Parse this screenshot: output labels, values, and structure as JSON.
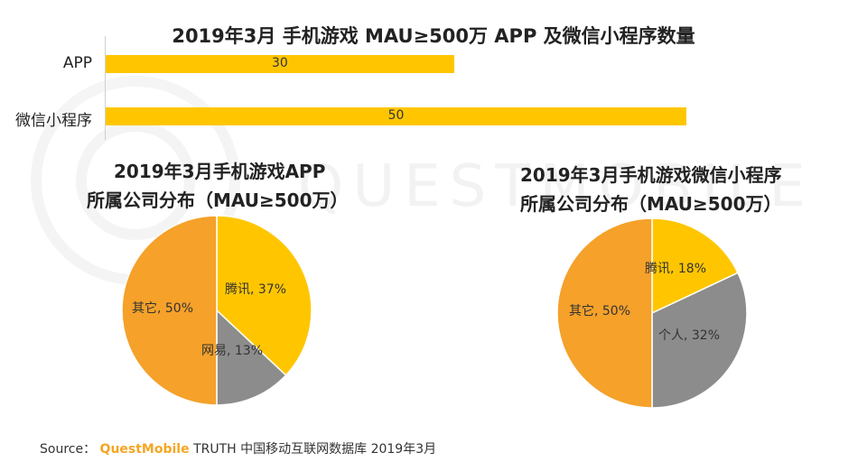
{
  "source": {
    "prefix": "Source：",
    "brand": "QuestMobile",
    "rest": "TRUTH 中国移动互联网数据库 2019年3月"
  },
  "watermark": "QUESTMOBILE",
  "colors": {
    "yellow": "#FFC600",
    "orange": "#F5A12A",
    "gray": "#8C8C8C"
  },
  "chart_data": [
    {
      "type": "bar",
      "orientation": "horizontal",
      "title": "2019年3月 手机游戏 MAU≥500万 APP 及微信小程序数量",
      "categories": [
        "APP",
        "微信小程序"
      ],
      "values": [
        30,
        50
      ],
      "xlim": [
        0,
        50
      ]
    },
    {
      "type": "pie",
      "title": [
        "2019年3月手机游戏APP",
        "所属公司分布（MAU≥500万）"
      ],
      "slices": [
        {
          "label": "腾讯, 37%",
          "value": 37,
          "color": "yellow"
        },
        {
          "label": "网易, 13%",
          "value": 13,
          "color": "gray"
        },
        {
          "label": "其它, 50%",
          "value": 50,
          "color": "orange"
        }
      ]
    },
    {
      "type": "pie",
      "title": [
        "2019年3月手机游戏微信小程序",
        "所属公司分布（MAU≥500万）"
      ],
      "slices": [
        {
          "label": "腾讯, 18%",
          "value": 18,
          "color": "yellow"
        },
        {
          "label": "个人, 32%",
          "value": 32,
          "color": "gray"
        },
        {
          "label": "其它, 50%",
          "value": 50,
          "color": "orange"
        }
      ]
    }
  ]
}
